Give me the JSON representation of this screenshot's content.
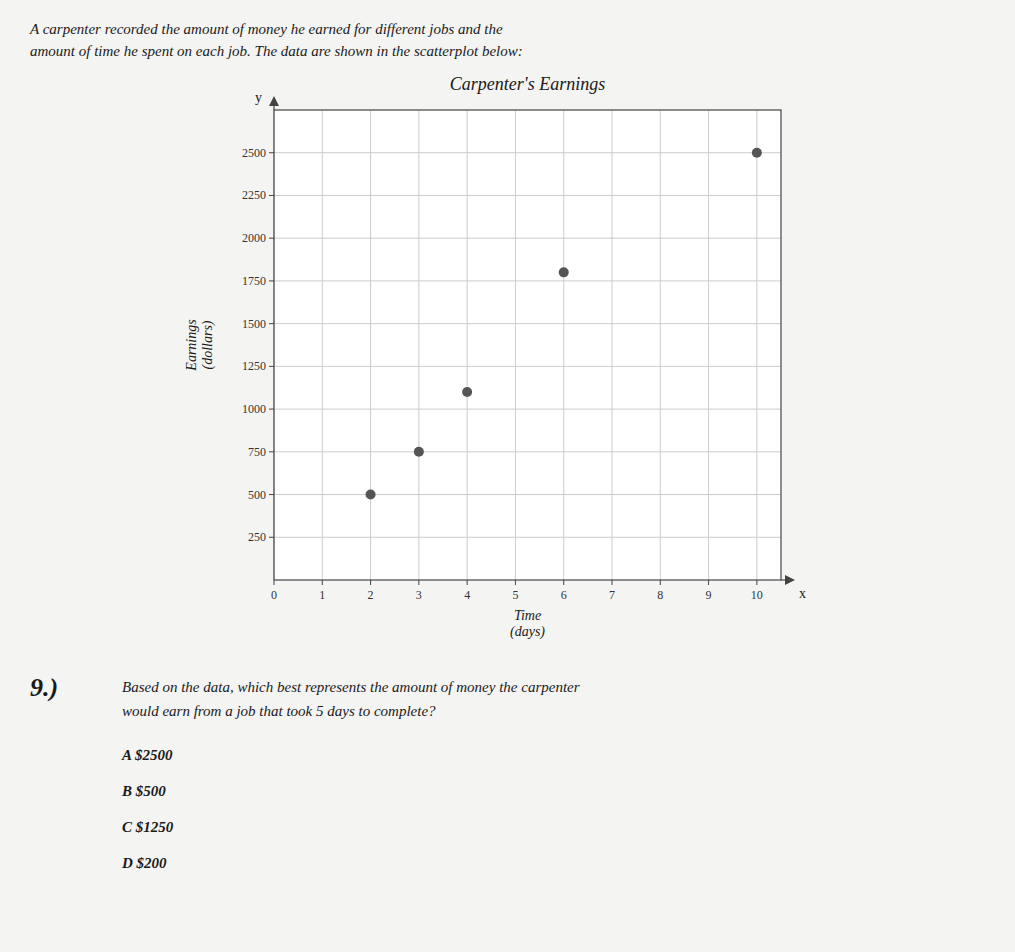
{
  "chart_data": {
    "type": "scatter",
    "title": "Carpenter's Earnings",
    "xlabel": "Time\n(days)",
    "ylabel": "Earnings\n(dollars)",
    "x": [
      2,
      3,
      4,
      6,
      10
    ],
    "values": [
      500,
      750,
      1100,
      1800,
      2500
    ],
    "color": "#555555",
    "marker": "circle",
    "xlim": [
      0,
      10.5
    ],
    "ylim": [
      0,
      2750
    ],
    "xticks": [
      0,
      1,
      2,
      3,
      4,
      5,
      6,
      7,
      8,
      9,
      10
    ],
    "yticks": [
      250,
      500,
      750,
      1000,
      1250,
      1500,
      1750,
      2000,
      2250,
      2500
    ],
    "grid": true,
    "annotations": [
      "A carpenter recorded the amount of money he earned for different jobs and the",
      "amount of time he spent on each job. The data are shown in the scatterplot below:",
      "y",
      "x",
      "9.)",
      "Based on the data, which best represents the amount of money the carpenter",
      "would earn from a job that took 5 days to complete?",
      "A  $2500",
      "B  $500",
      "C  $1250",
      "D  $200"
    ]
  }
}
